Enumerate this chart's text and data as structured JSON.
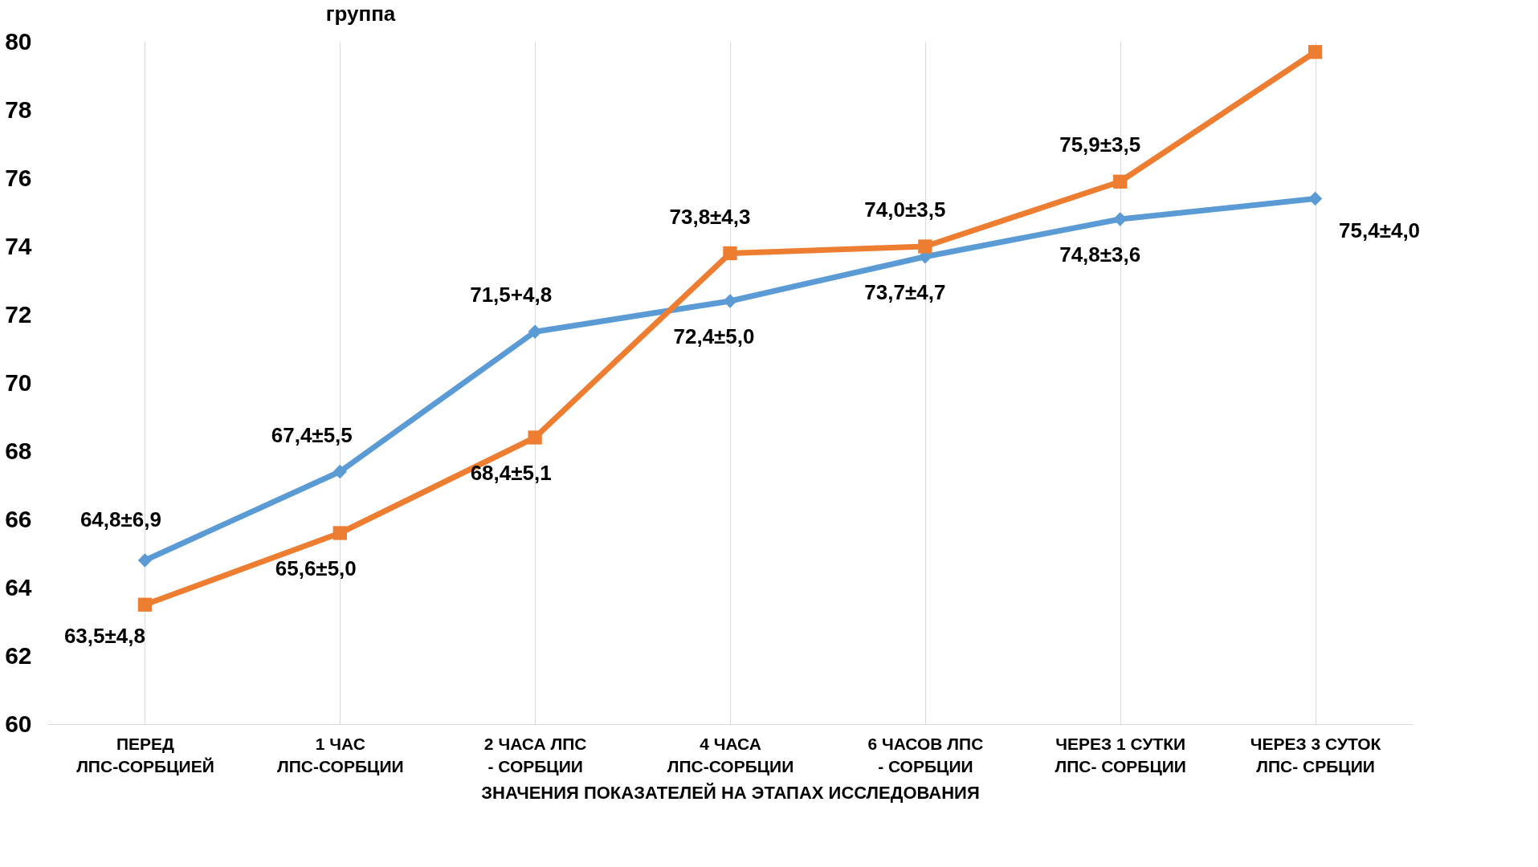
{
  "chart_data": {
    "type": "line",
    "title": "группа",
    "xlabel": "ЗНАЧЕНИЯ ПОКАЗАТЕЛЕЙ НА  ЭТАПАХ ИССЛЕДОВАНИЯ",
    "categories": [
      "ПЕРЕД ЛПС-СОРБЦИЕЙ",
      "1 ЧАС ЛПС-СОРБЦИИ",
      "2 ЧАСА ЛПС - СОРБЦИИ",
      "4 ЧАСА ЛПС-СОРБЦИИ",
      "6 ЧАСОВ ЛПС - СОРБЦИИ",
      "ЧЕРЕЗ 1 СУТКИ ЛПС- СОРБЦИИ",
      "ЧЕРЕЗ 3 СУТОК ЛПС- СРБЦИИ"
    ],
    "series": [
      {
        "color": "#5b9bd5",
        "marker": "diamond",
        "values": [
          64.8,
          67.4,
          71.5,
          72.4,
          73.7,
          74.8,
          75.4
        ],
        "value_labels": [
          "64,8±6,9",
          "67,4±5,5",
          "71,5+4,8",
          "72,4±5,0",
          "73,7±4,7",
          "74,8±3,6",
          "75,4±4,0"
        ]
      },
      {
        "color": "#ed7d31",
        "marker": "square",
        "values": [
          63.5,
          65.6,
          68.4,
          73.8,
          74.0,
          75.9,
          79.7
        ],
        "value_labels": [
          "63,5±4,8",
          "65,6±5,0",
          "68,4±5,1",
          "73,8±4,3",
          "74,0±3,5",
          "75,9±3,5",
          null
        ]
      }
    ],
    "ylim": [
      60,
      80
    ],
    "yticks": [
      60,
      62,
      64,
      66,
      68,
      70,
      72,
      74,
      76,
      78,
      80
    ],
    "grid": "x"
  }
}
